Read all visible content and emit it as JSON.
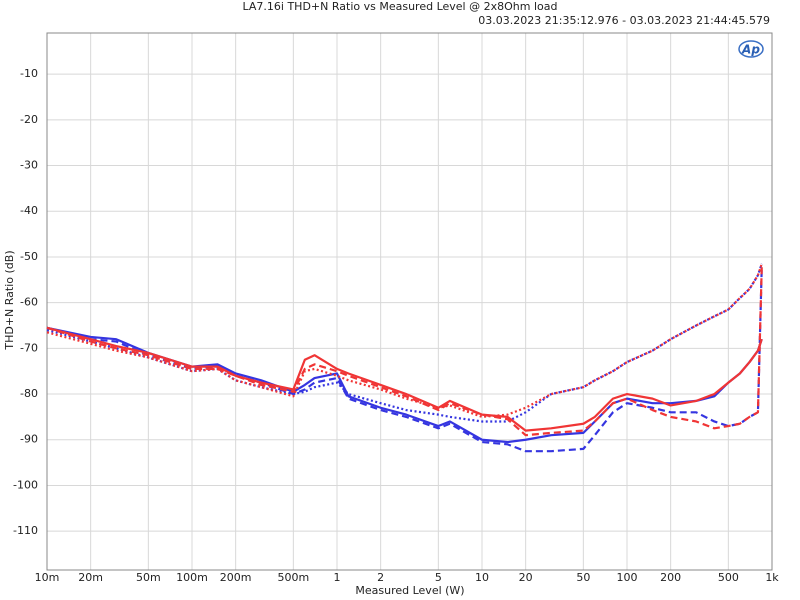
{
  "chart_data": {
    "type": "line",
    "title": "LA7.16i THD+N Ratio vs Measured Level @ 2x8Ohm load",
    "subtitle": "03.03.2023 21:35:12.976 - 03.03.2023 21:44:45.579",
    "x_label": "Measured Level (W)",
    "y_label": "THD+N Ratio (dB)",
    "logo": "Ap",
    "xscale": "log",
    "grid": true,
    "xlim": [
      0.01,
      1000
    ],
    "ylim": [
      -118.5,
      -1
    ],
    "xticks": [
      {
        "value": 0.01,
        "label": "10m"
      },
      {
        "value": 0.02,
        "label": "20m"
      },
      {
        "value": 0.05,
        "label": "50m"
      },
      {
        "value": 0.1,
        "label": "100m"
      },
      {
        "value": 0.2,
        "label": "200m"
      },
      {
        "value": 0.5,
        "label": "500m"
      },
      1,
      2,
      5,
      10,
      20,
      50,
      100,
      200,
      500,
      {
        "value": 1000,
        "label": "1k"
      }
    ],
    "yticks": [
      -10,
      -20,
      -30,
      -40,
      -50,
      -60,
      -70,
      -80,
      -90,
      -100,
      -110
    ],
    "x": [
      0.01,
      0.02,
      0.03,
      0.05,
      0.1,
      0.15,
      0.2,
      0.3,
      0.5,
      0.6,
      0.7,
      1,
      1.2,
      2,
      3,
      5,
      6,
      10,
      15,
      20,
      30,
      50,
      60,
      80,
      100,
      150,
      200,
      300,
      400,
      500,
      600,
      700,
      800,
      850
    ],
    "series": [
      {
        "color": "#3535e0",
        "dash": "dotted",
        "values": [
          -66,
          -68.5,
          -70,
          -72,
          -75,
          -74.5,
          -77,
          -78.5,
          -80,
          -79.5,
          -78.5,
          -77.5,
          -80,
          -82,
          -83.5,
          -84.5,
          -85,
          -86,
          -86,
          -84,
          -80,
          -78.5,
          -77,
          -75,
          -73,
          -70.5,
          -68,
          -65,
          -63,
          -61.5,
          -59,
          -57,
          -54,
          -51.5
        ]
      },
      {
        "color": "#3535e0",
        "dash": "dashed",
        "values": [
          -65.5,
          -68,
          -68.5,
          -71.5,
          -74.5,
          -74,
          -76,
          -77.5,
          -80,
          -79,
          -77.5,
          -76.5,
          -81,
          -83.5,
          -85,
          -87.5,
          -86.5,
          -90.5,
          -91,
          -92.5,
          -92.5,
          -92,
          -89,
          -84,
          -82,
          -83,
          -84,
          -84,
          -86,
          -87,
          -86.5,
          -85,
          -84,
          -52
        ]
      },
      {
        "color": "#3535e0",
        "dash": "solid",
        "values": [
          -65.5,
          -67.5,
          -68,
          -71,
          -74,
          -73.5,
          -75.5,
          -77,
          -79.5,
          -78,
          -76.5,
          -75.5,
          -80.5,
          -83,
          -84.5,
          -87,
          -86,
          -90,
          -90.5,
          -90,
          -89,
          -88.5,
          -86,
          -82,
          -81,
          -82,
          -82,
          -81.5,
          -80.5,
          -77.5,
          -75.5,
          -73,
          -70.5,
          -68
        ]
      },
      {
        "color": "#f03535",
        "dash": "dotted",
        "values": [
          -66.5,
          -69,
          -70.5,
          -72,
          -75,
          -74.5,
          -77,
          -78.5,
          -80.5,
          -75,
          -74.5,
          -76,
          -77,
          -79,
          -81,
          -83,
          -82.5,
          -85,
          -84.5,
          -83,
          -80,
          -78.5,
          -77,
          -75,
          -73,
          -70.5,
          -68,
          -65,
          -63,
          -61.5,
          -59,
          -57,
          -54,
          -51.5
        ]
      },
      {
        "color": "#f03535",
        "dash": "dashed",
        "values": [
          -65.5,
          -68.5,
          -70,
          -71.5,
          -74.5,
          -74.5,
          -76,
          -78,
          -79.5,
          -74.5,
          -73.5,
          -75,
          -76,
          -78.5,
          -80.5,
          -83.5,
          -82,
          -84.5,
          -85.5,
          -89,
          -88.5,
          -88,
          -86,
          -82,
          -81,
          -83.5,
          -85,
          -86,
          -87.5,
          -87,
          -86.5,
          -85,
          -84,
          -52
        ]
      },
      {
        "color": "#f03535",
        "dash": "solid",
        "values": [
          -65.5,
          -68,
          -69.5,
          -71,
          -74,
          -74,
          -76,
          -77.5,
          -79,
          -72.5,
          -71.5,
          -74.5,
          -75.5,
          -78,
          -80,
          -83,
          -81.5,
          -84.5,
          -85,
          -88,
          -87.5,
          -86.5,
          -85,
          -81,
          -80,
          -81,
          -82.5,
          -81.5,
          -80,
          -77.5,
          -75.5,
          -73,
          -70.5,
          -68
        ]
      }
    ]
  }
}
